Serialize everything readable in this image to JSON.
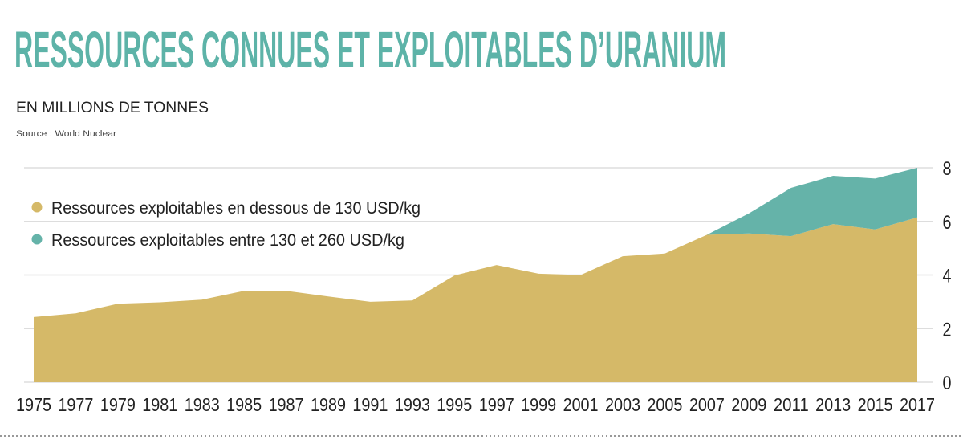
{
  "title": "RESSOURCES CONNUES ET EXPLOITABLES D’URANIUM",
  "subtitle": "EN MILLIONS DE TONNES",
  "source": "Source : World Nuclear",
  "colors": {
    "title": "#5db3a8",
    "gold": "#d5b968",
    "teal": "#65b3a9",
    "grid": "#dddddd",
    "text": "#222222"
  },
  "chart_data": {
    "type": "area",
    "stacked": true,
    "title": "RESSOURCES CONNUES ET EXPLOITABLES D’URANIUM",
    "ylabel": "EN MILLIONS DE TONNES",
    "x": [
      1975,
      1977,
      1979,
      1981,
      1983,
      1985,
      1987,
      1989,
      1991,
      1993,
      1995,
      1997,
      1999,
      2001,
      2003,
      2005,
      2007,
      2009,
      2011,
      2013,
      2015,
      2017
    ],
    "series": [
      {
        "name": "Ressources exploitables en dessous de 130 USD/kg",
        "color": "#d5b968",
        "values": [
          2.43,
          2.57,
          2.93,
          2.98,
          3.08,
          3.41,
          3.41,
          3.2,
          3.0,
          3.05,
          3.98,
          4.37,
          4.05,
          4.0,
          4.7,
          4.8,
          5.5,
          5.55,
          5.45,
          5.9,
          5.7,
          6.15
        ]
      },
      {
        "name": "Ressources exploitables entre 130 et 260 USD/kg",
        "color": "#65b3a9",
        "values": [
          0,
          0,
          0,
          0,
          0,
          0,
          0,
          0,
          0,
          0,
          0,
          0,
          0,
          0,
          0,
          0,
          0,
          0.75,
          1.8,
          1.8,
          1.9,
          1.85
        ]
      }
    ],
    "xticks": [
      "1975",
      "1977",
      "1979",
      "1981",
      "1983",
      "1985",
      "1987",
      "1989",
      "1991",
      "1993",
      "1995",
      "1997",
      "1999",
      "2001",
      "2003",
      "2005",
      "2007",
      "2009",
      "2011",
      "2013",
      "2015",
      "2017"
    ],
    "yticks": [
      "0",
      "2",
      "4",
      "6",
      "8"
    ],
    "ylim": [
      0,
      8
    ],
    "grid": true,
    "legend_position": "top-left"
  }
}
